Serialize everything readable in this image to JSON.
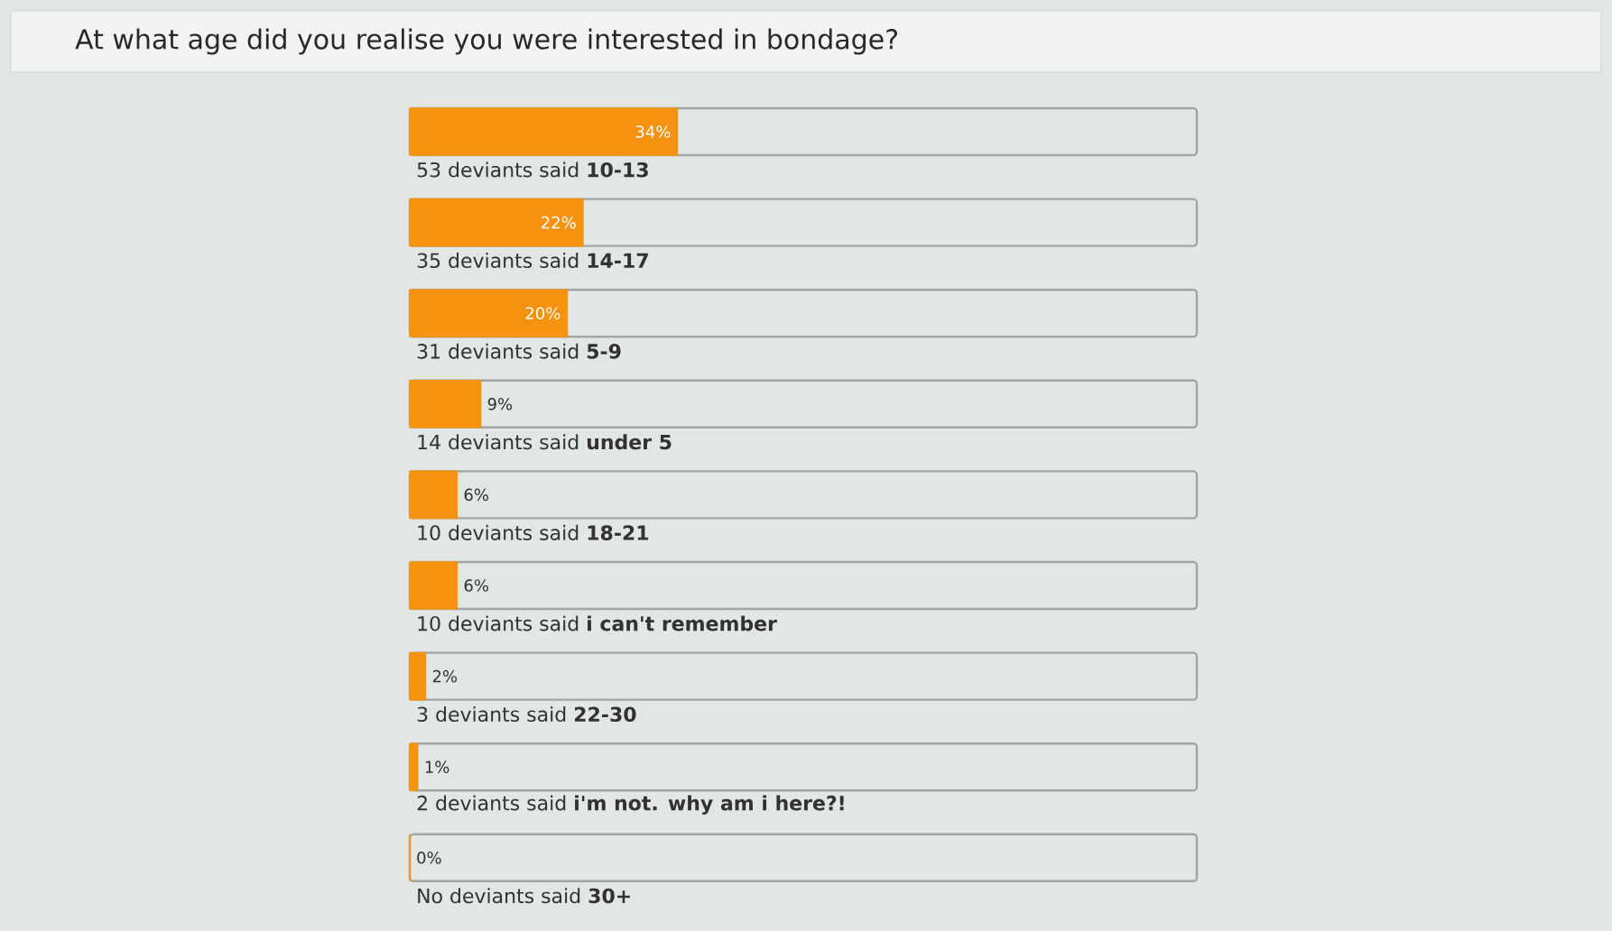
{
  "chart_data": {
    "type": "bar",
    "orientation": "horizontal",
    "title": "At what age did you realise you were interested in bondage?",
    "categories": [
      "53 deviants said **10-13**",
      "35 deviants said **14-17**",
      "31 deviants said **5-9**",
      "14 deviants said **under 5**",
      "10 deviants said **18-21**",
      "10 deviants said **i can't remember**",
      "3 deviants said **22-30**",
      "2 deviants said **i'm not. why am i here?!**",
      "No deviants said **30+**"
    ],
    "values": [
      34,
      22,
      20,
      9,
      6,
      6,
      2,
      1,
      0
    ],
    "value_labels": [
      "34%",
      "22%",
      "20%",
      "9%",
      "6%",
      "6%",
      "2%",
      "1%",
      "0%"
    ],
    "color": "#f5920f",
    "xlim": [
      0,
      100
    ]
  }
}
